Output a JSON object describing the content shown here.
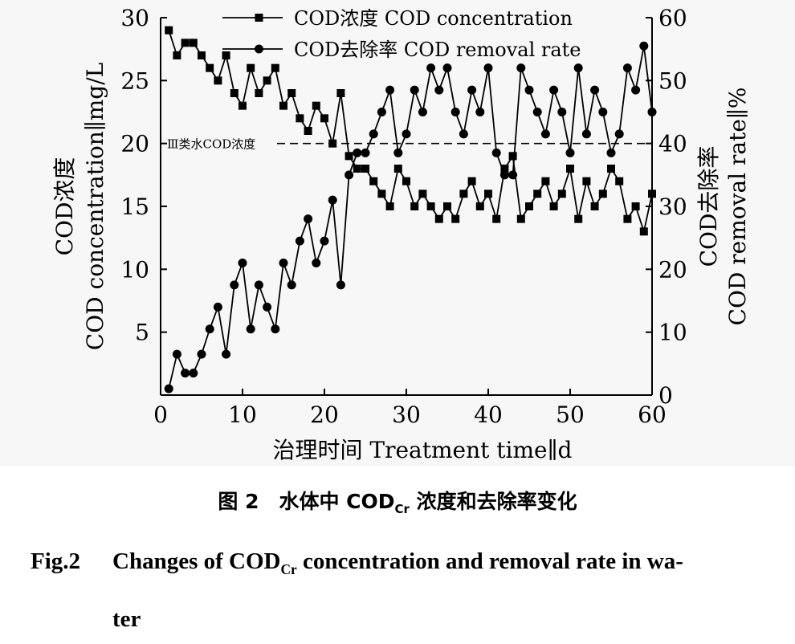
{
  "chart_data": {
    "type": "line",
    "x": [
      1,
      2,
      3,
      4,
      5,
      6,
      7,
      8,
      9,
      10,
      11,
      12,
      13,
      14,
      15,
      16,
      17,
      18,
      19,
      20,
      21,
      22,
      23,
      24,
      25,
      26,
      27,
      28,
      29,
      30,
      31,
      32,
      33,
      34,
      35,
      36,
      37,
      38,
      39,
      40,
      41,
      42,
      43,
      44,
      45,
      46,
      47,
      48,
      49,
      50,
      51,
      52,
      53,
      54,
      55,
      56,
      57,
      58,
      59,
      60
    ],
    "series": [
      {
        "name": "COD浓度 COD concentration",
        "axis": "left",
        "marker": "square",
        "values": [
          29,
          27,
          28,
          28,
          27,
          26,
          25,
          27,
          24,
          23,
          26,
          24,
          25,
          26,
          23,
          24,
          22,
          21,
          23,
          22,
          20,
          24,
          19,
          18,
          18,
          17,
          16,
          15,
          18,
          17,
          15,
          16,
          15,
          14,
          15,
          14,
          16,
          17,
          15,
          16,
          14,
          18,
          19,
          14,
          15,
          16,
          17,
          15,
          16,
          18,
          14,
          17,
          15,
          16,
          18,
          17,
          14,
          15,
          13,
          16
        ]
      },
      {
        "name": "COD去除率 COD removal rate",
        "axis": "right",
        "marker": "circle",
        "values": [
          1,
          6.5,
          3.5,
          3.5,
          6.5,
          10.5,
          14,
          6.5,
          17.5,
          21,
          10.5,
          17.5,
          14,
          10.5,
          21,
          17.5,
          24.5,
          28,
          21,
          24.5,
          31,
          17.5,
          35,
          38.5,
          38.5,
          41.5,
          45,
          48.5,
          38.5,
          41.5,
          48.5,
          45,
          52,
          48.5,
          52,
          45,
          41.5,
          48.5,
          45,
          52,
          38.5,
          35,
          35,
          52,
          48.5,
          45,
          41.5,
          48.5,
          45,
          38.5,
          52,
          41.5,
          48.5,
          45,
          38.5,
          41.5,
          52,
          48.5,
          55.5,
          45
        ]
      }
    ],
    "reference_line": {
      "label": "Ⅲ类水COD浓度",
      "value": 20,
      "axis": "left"
    },
    "xlabel": "治理时间 Treatment time∥d",
    "ylabel_left": [
      "COD浓度",
      "COD concentration∥mg/L"
    ],
    "ylabel_right": [
      "COD去除率",
      "COD removal rate∥%"
    ],
    "xlim": [
      0,
      60
    ],
    "ylim_left": [
      0,
      30
    ],
    "ylim_right": [
      0,
      60
    ],
    "xticks": [
      0,
      10,
      20,
      30,
      40,
      50,
      60
    ],
    "yticks_left": [
      5,
      10,
      15,
      20,
      25,
      30
    ],
    "yticks_right": [
      0,
      10,
      20,
      30,
      40,
      50,
      60
    ],
    "legend_position": "top-center",
    "grid": false,
    "colors": {
      "line": "#000000",
      "background": "#f7f7f7"
    }
  },
  "caption": {
    "cn_prefix": "图 2　水体中 COD",
    "cn_sub": "Cr",
    "cn_suffix": " 浓度和去除率变化",
    "en_label": "Fig.2",
    "en_prefix": "Changes of COD",
    "en_sub": "Cr",
    "en_suffix": " concentration and removal rate in wa-",
    "en_cont": "ter"
  }
}
